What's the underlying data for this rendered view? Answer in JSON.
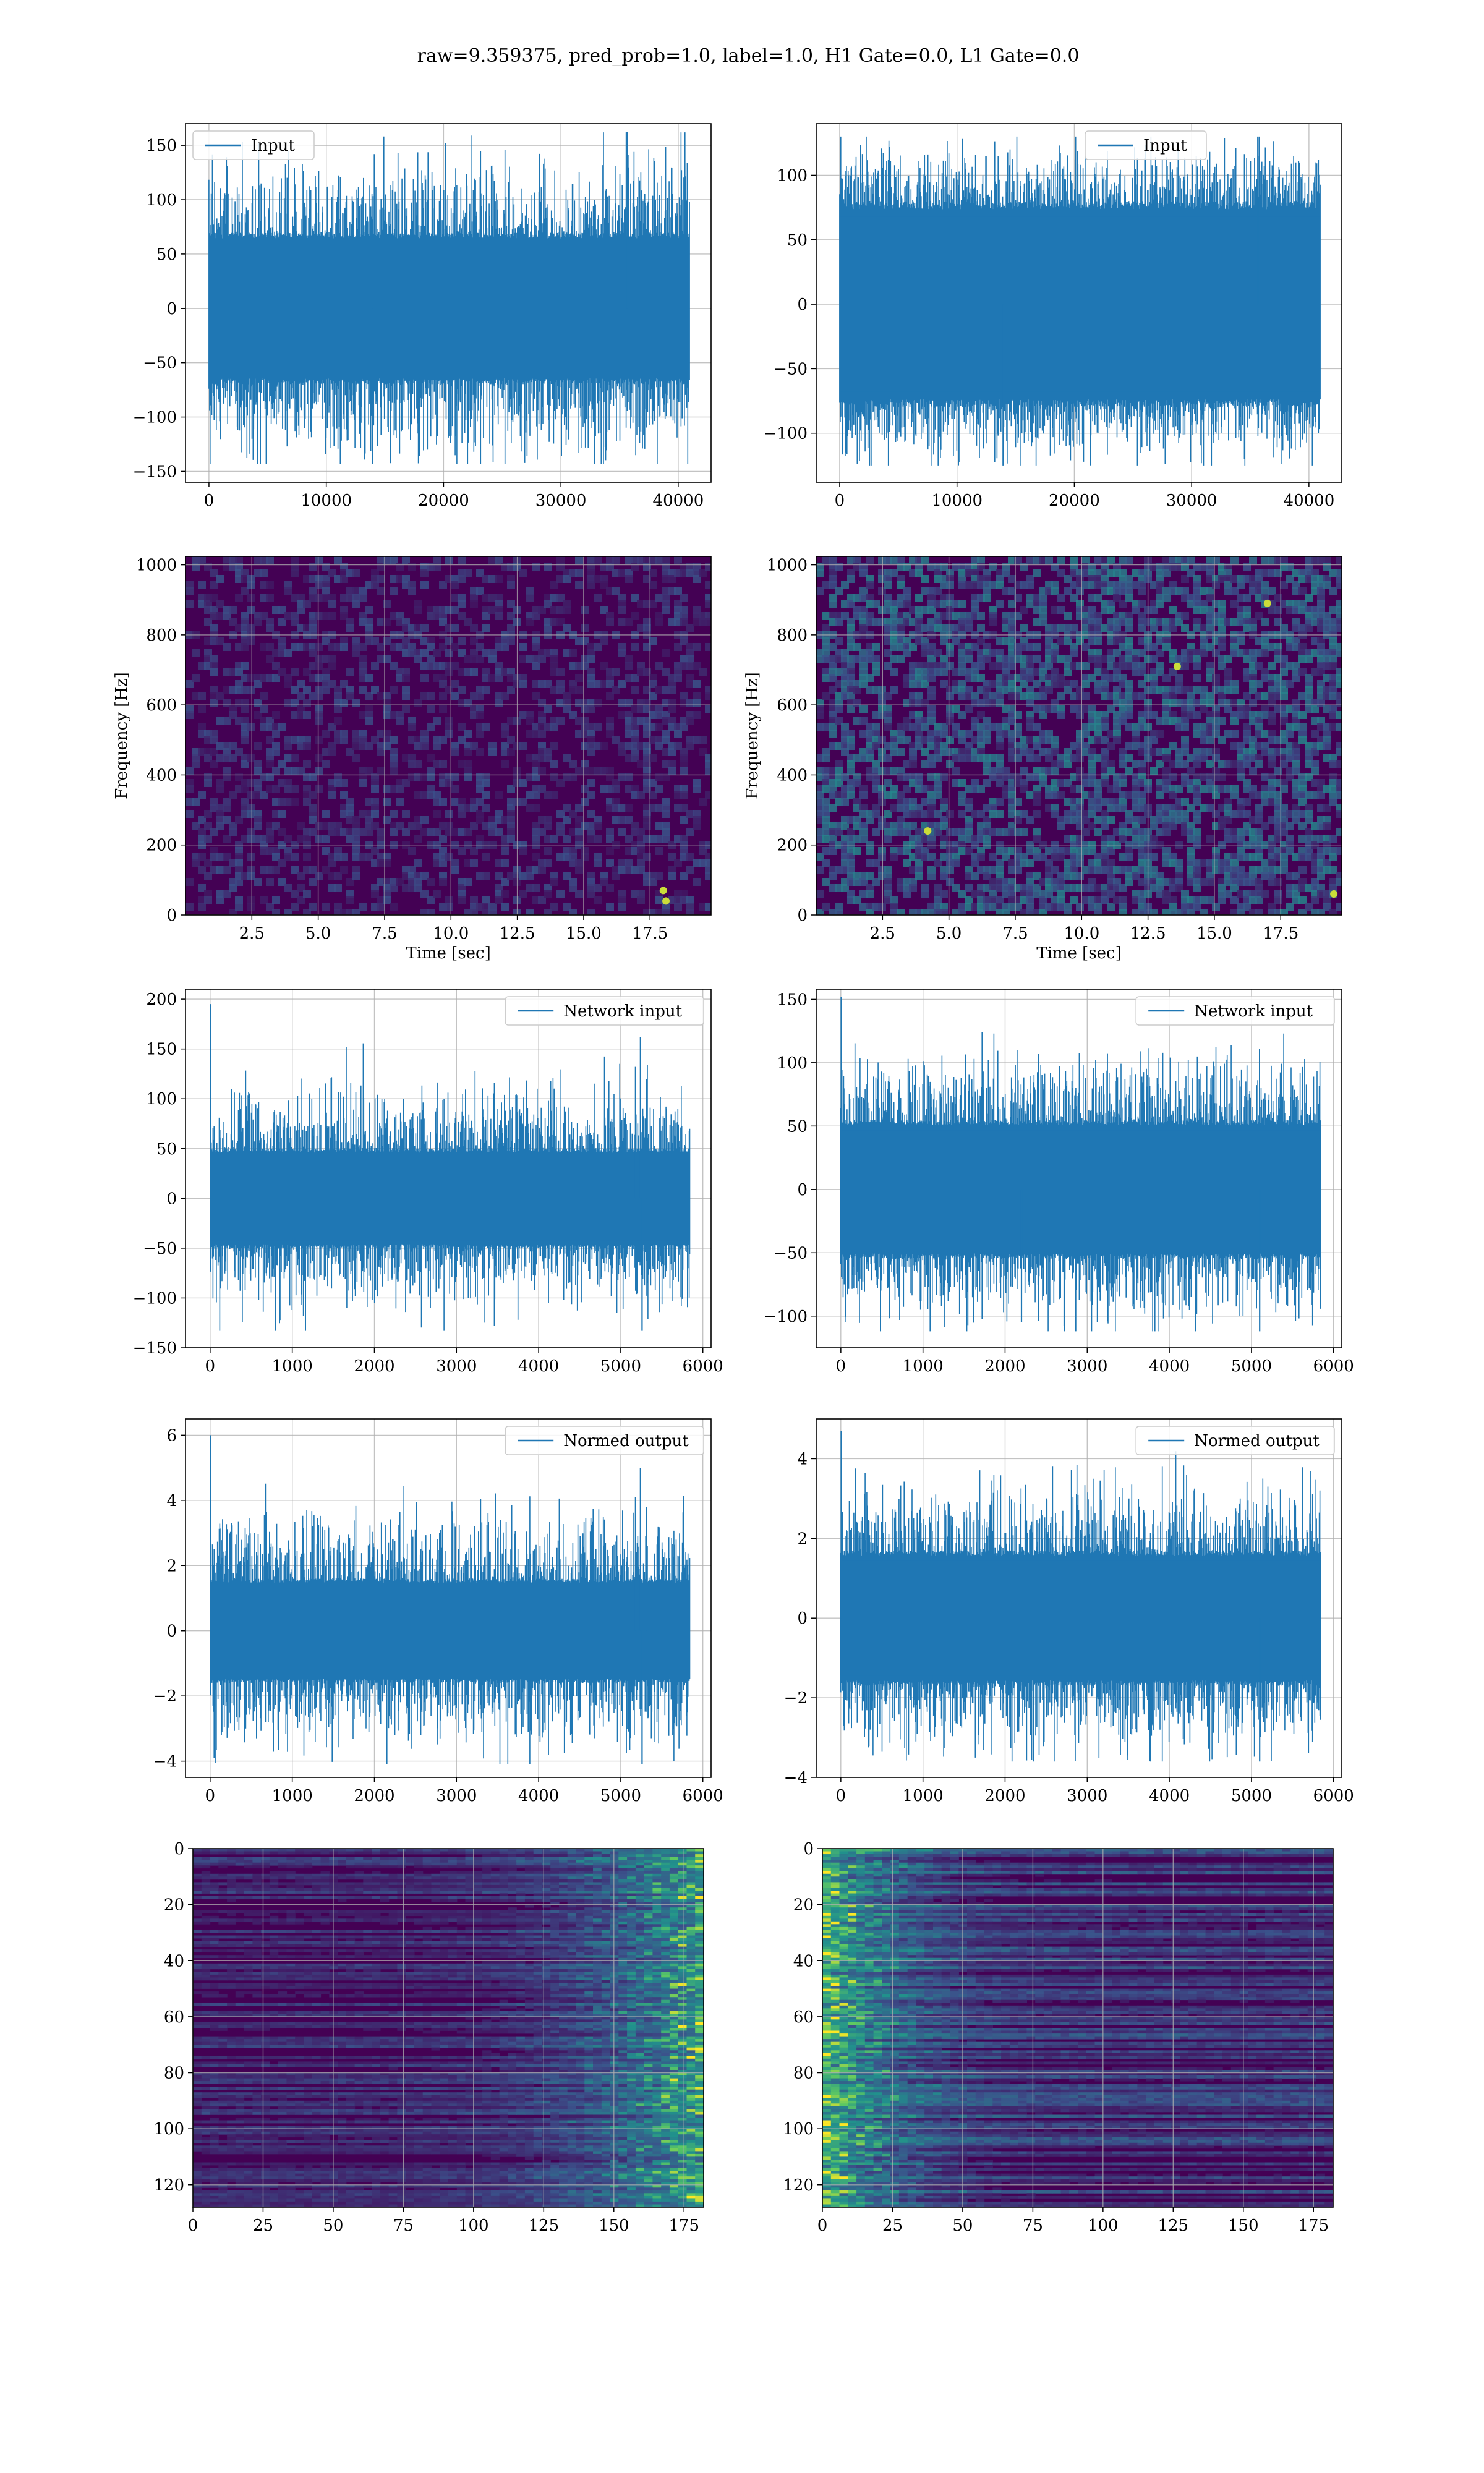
{
  "title": "raw=9.359375, pred_prob=1.0, label=1.0, H1 Gate=0.0, L1 Gate=0.0",
  "colors": {
    "line": "#1f77b4",
    "grid": "#b0b0b0",
    "viridis_low": "#440154",
    "viridis_mid": "#21908d",
    "viridis_high": "#fde725"
  },
  "chart_data": [
    {
      "type": "line",
      "legend": "Input",
      "legend_position": "upper-left",
      "xlim": [
        -2000,
        42800
      ],
      "ylim": [
        -160,
        170
      ],
      "xticks": [
        0,
        10000,
        20000,
        30000,
        40000
      ],
      "xtick_labels": [
        "0",
        "10000",
        "20000",
        "30000",
        "40000"
      ],
      "yticks": [
        -150,
        -100,
        -50,
        0,
        50,
        100,
        150
      ],
      "ytick_labels": [
        "−150",
        "−100",
        "−50",
        "0",
        "50",
        "100",
        "150"
      ],
      "grid": true,
      "signal": {
        "n_points": 40960,
        "core_amplitude": 70,
        "typical_peak": 105,
        "max": 162,
        "min": -143,
        "spikes": []
      }
    },
    {
      "type": "line",
      "legend": "Input",
      "legend_position": "upper-center",
      "xlim": [
        -2000,
        42800
      ],
      "ylim": [
        -138,
        140
      ],
      "xticks": [
        0,
        10000,
        20000,
        30000,
        40000
      ],
      "xtick_labels": [
        "0",
        "10000",
        "20000",
        "30000",
        "40000"
      ],
      "yticks": [
        -100,
        -50,
        0,
        50,
        100
      ],
      "ytick_labels": [
        "−100",
        "−50",
        "0",
        "50",
        "100"
      ],
      "grid": true,
      "signal": {
        "n_points": 40960,
        "core_amplitude": 80,
        "typical_peak": 100,
        "max": 130,
        "min": -125,
        "spikes": []
      }
    },
    {
      "type": "heatmap",
      "cmap": "viridis",
      "xlim": [
        0,
        19.8
      ],
      "ylim": [
        0,
        1024
      ],
      "xticks": [
        2.5,
        5.0,
        7.5,
        10.0,
        12.5,
        15.0,
        17.5
      ],
      "xtick_labels": [
        "2.5",
        "5.0",
        "7.5",
        "10.0",
        "12.5",
        "15.0",
        "17.5"
      ],
      "yticks": [
        0,
        200,
        400,
        600,
        800,
        1000
      ],
      "ytick_labels": [
        "0",
        "200",
        "400",
        "600",
        "800",
        "1000"
      ],
      "xlabel": "Time [sec]",
      "ylabel": "Frequency [Hz]",
      "grid": true,
      "texture": {
        "density": 0.35,
        "brightness": 0.22,
        "hot_spots": [
          {
            "t": 18.0,
            "f": 70
          },
          {
            "t": 18.1,
            "f": 40
          }
        ]
      }
    },
    {
      "type": "heatmap",
      "cmap": "viridis",
      "xlim": [
        0,
        19.8
      ],
      "ylim": [
        0,
        1024
      ],
      "xticks": [
        2.5,
        5.0,
        7.5,
        10.0,
        12.5,
        15.0,
        17.5
      ],
      "xtick_labels": [
        "2.5",
        "5.0",
        "7.5",
        "10.0",
        "12.5",
        "15.0",
        "17.5"
      ],
      "yticks": [
        0,
        200,
        400,
        600,
        800,
        1000
      ],
      "ytick_labels": [
        "0",
        "200",
        "400",
        "600",
        "800",
        "1000"
      ],
      "xlabel": "Time [sec]",
      "ylabel": "Frequency [Hz]",
      "grid": true,
      "texture": {
        "density": 0.55,
        "brightness": 0.38,
        "hot_spots": [
          {
            "t": 4.2,
            "f": 240
          },
          {
            "t": 13.6,
            "f": 710
          },
          {
            "t": 17.0,
            "f": 890
          },
          {
            "t": 19.5,
            "f": 60
          }
        ]
      }
    },
    {
      "type": "line",
      "legend": "Network input",
      "legend_position": "upper-right",
      "xlim": [
        -300,
        6100
      ],
      "ylim": [
        -150,
        210
      ],
      "xticks": [
        0,
        1000,
        2000,
        3000,
        4000,
        5000,
        6000
      ],
      "xtick_labels": [
        "0",
        "1000",
        "2000",
        "3000",
        "4000",
        "5000",
        "6000"
      ],
      "yticks": [
        -150,
        -100,
        -50,
        0,
        50,
        100,
        150,
        200
      ],
      "ytick_labels": [
        "−150",
        "−100",
        "−50",
        "0",
        "50",
        "100",
        "150",
        "200"
      ],
      "grid": true,
      "signal": {
        "n_points": 5840,
        "core_amplitude": 50,
        "typical_peak": 80,
        "max": 195,
        "min": -133,
        "spikes": [
          {
            "x": 5,
            "v": 195
          },
          {
            "x": 5240,
            "v": 162
          },
          {
            "x": 5180,
            "v": 132
          },
          {
            "x": 5260,
            "v": -133
          },
          {
            "x": 5310,
            "v": 120
          }
        ]
      }
    },
    {
      "type": "line",
      "legend": "Network input",
      "legend_position": "upper-right",
      "xlim": [
        -300,
        6100
      ],
      "ylim": [
        -125,
        158
      ],
      "xticks": [
        0,
        1000,
        2000,
        3000,
        4000,
        5000,
        6000
      ],
      "xtick_labels": [
        "0",
        "1000",
        "2000",
        "3000",
        "4000",
        "5000",
        "6000"
      ],
      "yticks": [
        -100,
        -50,
        0,
        50,
        100,
        150
      ],
      "ytick_labels": [
        "−100",
        "−50",
        "0",
        "50",
        "100",
        "150"
      ],
      "grid": true,
      "signal": {
        "n_points": 5840,
        "core_amplitude": 55,
        "typical_peak": 80,
        "max": 152,
        "min": -112,
        "spikes": [
          {
            "x": 5,
            "v": 152
          },
          {
            "x": 2200,
            "v": -105
          },
          {
            "x": 5100,
            "v": -112
          }
        ]
      }
    },
    {
      "type": "line",
      "legend": "Normed output",
      "legend_position": "upper-right",
      "xlim": [
        -300,
        6100
      ],
      "ylim": [
        -4.5,
        6.5
      ],
      "xticks": [
        0,
        1000,
        2000,
        3000,
        4000,
        5000,
        6000
      ],
      "xtick_labels": [
        "0",
        "1000",
        "2000",
        "3000",
        "4000",
        "5000",
        "6000"
      ],
      "yticks": [
        -4,
        -2,
        0,
        2,
        4,
        6
      ],
      "ytick_labels": [
        "−4",
        "−2",
        "0",
        "2",
        "4",
        "6"
      ],
      "grid": true,
      "signal": {
        "n_points": 5840,
        "core_amplitude": 1.6,
        "typical_peak": 2.6,
        "max": 6.0,
        "min": -4.1,
        "spikes": [
          {
            "x": 5,
            "v": 6.0
          },
          {
            "x": 5240,
            "v": 5.0
          },
          {
            "x": 5180,
            "v": 4.1
          },
          {
            "x": 5260,
            "v": -4.1
          },
          {
            "x": 5310,
            "v": 3.8
          }
        ]
      }
    },
    {
      "type": "line",
      "legend": "Normed output",
      "legend_position": "upper-right",
      "xlim": [
        -300,
        6100
      ],
      "ylim": [
        -4.0,
        5.0
      ],
      "xticks": [
        0,
        1000,
        2000,
        3000,
        4000,
        5000,
        6000
      ],
      "xtick_labels": [
        "0",
        "1000",
        "2000",
        "3000",
        "4000",
        "5000",
        "6000"
      ],
      "yticks": [
        -4,
        -2,
        0,
        2,
        4
      ],
      "ytick_labels": [
        "−4",
        "−2",
        "0",
        "2",
        "4"
      ],
      "grid": true,
      "signal": {
        "n_points": 5840,
        "core_amplitude": 1.7,
        "typical_peak": 2.5,
        "max": 4.7,
        "min": -3.6,
        "spikes": [
          {
            "x": 5,
            "v": 4.7
          },
          {
            "x": 5100,
            "v": -3.6
          }
        ]
      }
    },
    {
      "type": "heatmap",
      "cmap": "viridis",
      "xlim": [
        0,
        182
      ],
      "ylim": [
        128,
        0
      ],
      "xticks": [
        0,
        25,
        50,
        75,
        100,
        125,
        150,
        175
      ],
      "xtick_labels": [
        "0",
        "25",
        "50",
        "75",
        "100",
        "125",
        "150",
        "175"
      ],
      "yticks": [
        0,
        20,
        40,
        60,
        80,
        100,
        120
      ],
      "ytick_labels": [
        "0",
        "20",
        "40",
        "60",
        "80",
        "100",
        "120"
      ],
      "grid": true,
      "texture": {
        "rows": 128,
        "columns": 182,
        "bright_side": "right",
        "brightness": 0.25
      }
    },
    {
      "type": "heatmap",
      "cmap": "viridis",
      "xlim": [
        0,
        182
      ],
      "ylim": [
        128,
        0
      ],
      "xticks": [
        0,
        25,
        50,
        75,
        100,
        125,
        150,
        175
      ],
      "xtick_labels": [
        "0",
        "25",
        "50",
        "75",
        "100",
        "125",
        "150",
        "175"
      ],
      "yticks": [
        0,
        20,
        40,
        60,
        80,
        100,
        120
      ],
      "ytick_labels": [
        "0",
        "20",
        "40",
        "60",
        "80",
        "100",
        "120"
      ],
      "grid": true,
      "texture": {
        "rows": 128,
        "columns": 182,
        "bright_side": "left",
        "brightness": 0.35
      }
    }
  ]
}
